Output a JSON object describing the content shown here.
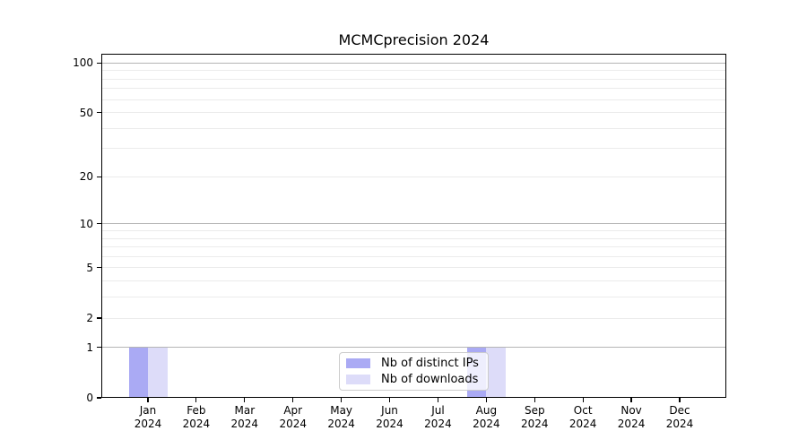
{
  "chart_data": {
    "type": "bar",
    "title": "MCMCprecision 2024",
    "x_categories": [
      "Jan",
      "Feb",
      "Mar",
      "Apr",
      "May",
      "Jun",
      "Jul",
      "Aug",
      "Sep",
      "Oct",
      "Nov",
      "Dec"
    ],
    "x_year": "2024",
    "series": [
      {
        "name": "Nb of distinct IPs",
        "color": "#aaaaf4",
        "values": [
          1,
          0,
          0,
          0,
          0,
          0,
          0,
          1,
          0,
          0,
          0,
          0
        ]
      },
      {
        "name": "Nb of downloads",
        "color": "#dddcf9",
        "values": [
          1,
          0,
          0,
          0,
          0,
          0,
          0,
          1,
          0,
          0,
          0,
          0
        ]
      }
    ],
    "yscale": "log1p",
    "ylim": [
      0,
      113.6
    ],
    "y_tick_labels": [
      100,
      50,
      20,
      10,
      5,
      2,
      1,
      0
    ],
    "major_gridlines": [
      1,
      10,
      100
    ],
    "minor_gridlines": [
      2,
      3,
      4,
      5,
      6,
      7,
      8,
      9,
      20,
      30,
      40,
      50,
      60,
      70,
      80,
      90
    ],
    "grid_major_color": "#b5b5b5",
    "grid_minor_color": "#ebebeb",
    "legend_position": "lower center",
    "grid": "on"
  }
}
